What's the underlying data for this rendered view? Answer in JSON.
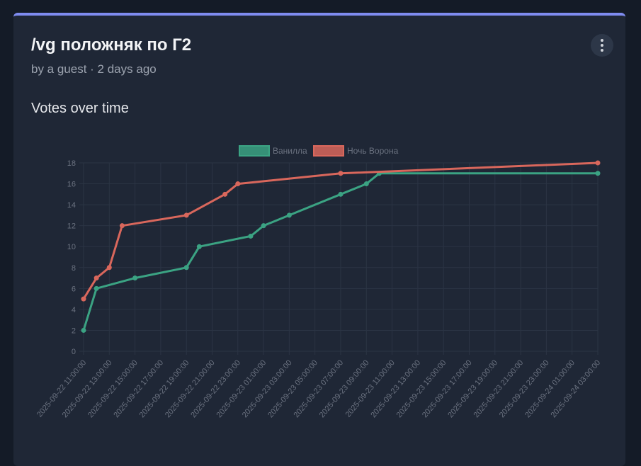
{
  "post": {
    "title": "/vg положняк по Г2",
    "byline": "by a guest · 2 days ago",
    "section_title": "Votes over time"
  },
  "colors": {
    "accent": "#7f8cf0",
    "series": [
      "#3ba383",
      "#d9675c"
    ]
  },
  "icons": {
    "menu": "more-vertical-icon"
  },
  "chart_data": {
    "type": "line",
    "title": "",
    "xlabel": "",
    "ylabel": "",
    "ylim": [
      0,
      18
    ],
    "yticks": [
      0,
      2,
      4,
      6,
      8,
      10,
      12,
      14,
      16,
      18
    ],
    "grid": true,
    "legend": "top-center",
    "xlim": [
      "2025-09-22 11:00:00",
      "2025-09-24 03:00:00"
    ],
    "x_tick_labels": [
      "2025-09-22 11:00:00",
      "2025-09-22 13:00:00",
      "2025-09-22 15:00:00",
      "2025-09-22 17:00:00",
      "2025-09-22 19:00:00",
      "2025-09-22 21:00:00",
      "2025-09-22 23:00:00",
      "2025-09-23 01:00:00",
      "2025-09-23 03:00:00",
      "2025-09-23 05:00:00",
      "2025-09-23 07:00:00",
      "2025-09-23 09:00:00",
      "2025-09-23 11:00:00",
      "2025-09-23 13:00:00",
      "2025-09-23 15:00:00",
      "2025-09-23 17:00:00",
      "2025-09-23 19:00:00",
      "2025-09-23 21:00:00",
      "2025-09-23 23:00:00",
      "2025-09-24 01:00:00",
      "2025-09-24 03:00:00"
    ],
    "series": [
      {
        "name": "Ванилла",
        "points": [
          [
            "2025-09-22 11:00",
            2
          ],
          [
            "2025-09-22 12:00",
            6
          ],
          [
            "2025-09-22 15:00",
            7
          ],
          [
            "2025-09-22 19:00",
            8
          ],
          [
            "2025-09-22 20:00",
            10
          ],
          [
            "2025-09-23 00:00",
            11
          ],
          [
            "2025-09-23 01:00",
            12
          ],
          [
            "2025-09-23 03:00",
            13
          ],
          [
            "2025-09-23 07:00",
            15
          ],
          [
            "2025-09-23 09:00",
            16
          ],
          [
            "2025-09-23 10:00",
            17
          ],
          [
            "2025-09-24 03:00",
            17
          ]
        ]
      },
      {
        "name": "Ночь Ворона",
        "points": [
          [
            "2025-09-22 11:00",
            5
          ],
          [
            "2025-09-22 12:00",
            7
          ],
          [
            "2025-09-22 13:00",
            8
          ],
          [
            "2025-09-22 14:00",
            12
          ],
          [
            "2025-09-22 19:00",
            13
          ],
          [
            "2025-09-22 22:00",
            15
          ],
          [
            "2025-09-22 23:00",
            16
          ],
          [
            "2025-09-23 07:00",
            17
          ],
          [
            "2025-09-24 03:00",
            18
          ]
        ]
      }
    ]
  }
}
